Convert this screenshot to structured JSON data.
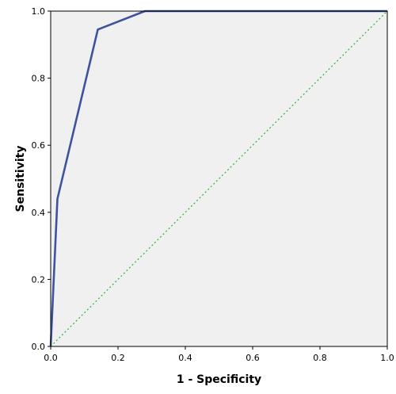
{
  "chart_data": {
    "type": "line",
    "title": "",
    "xlabel": "1 - Specificity",
    "ylabel": "Sensitivity",
    "xlim": [
      0,
      1
    ],
    "ylim": [
      0,
      1
    ],
    "x_ticks": [
      "0.0",
      "0.2",
      "0.4",
      "0.6",
      "0.8",
      "1.0"
    ],
    "y_ticks": [
      "0.0",
      "0.2",
      "0.4",
      "0.6",
      "0.8",
      "1.0"
    ],
    "grid": false,
    "legend": "none",
    "plot_background": "#f0f0f0",
    "series": [
      {
        "color": "#3e539c",
        "style": "solid",
        "points": [
          [
            0.0,
            0.0
          ],
          [
            0.02,
            0.44
          ],
          [
            0.14,
            0.945
          ],
          [
            0.28,
            1.0
          ],
          [
            1.0,
            1.0
          ]
        ]
      },
      {
        "color": "#39b44a",
        "style": "dotted",
        "points": [
          [
            0.0,
            0.0
          ],
          [
            1.0,
            1.0
          ]
        ]
      }
    ]
  }
}
